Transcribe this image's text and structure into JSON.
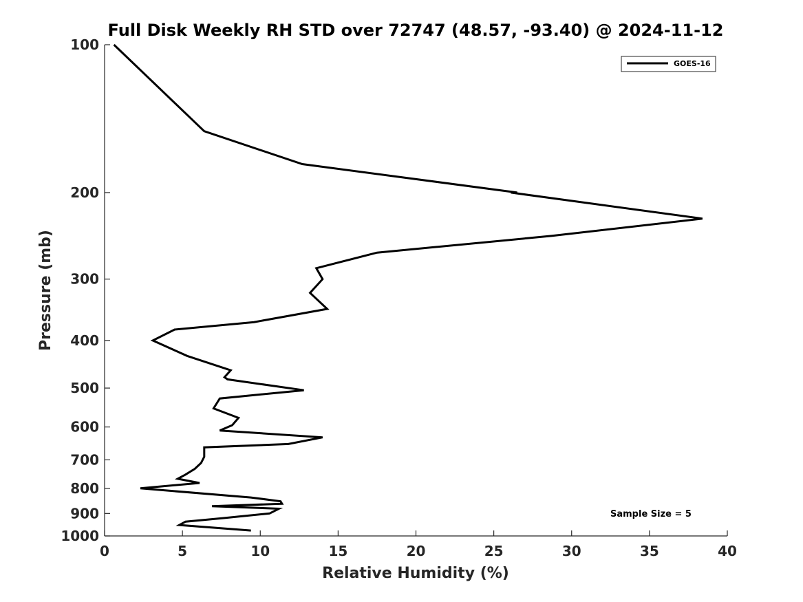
{
  "chart_data": {
    "type": "line",
    "title": "Full Disk Weekly RH STD over 72747 (48.57, -93.40) @ 2024-11-12",
    "xlabel": "Relative Humidity (%)",
    "ylabel": "Pressure (mb)",
    "xlim": [
      0,
      40
    ],
    "ylim": [
      100,
      1000
    ],
    "y_scale": "log",
    "y_reversed": true,
    "x_ticks": [
      "0",
      "5",
      "10",
      "15",
      "20",
      "25",
      "30",
      "35",
      "40"
    ],
    "y_ticks": [
      "100",
      "200",
      "300",
      "400",
      "500",
      "600",
      "700",
      "800",
      "900",
      "1000"
    ],
    "grid": false,
    "legend_position": "top-right",
    "series": [
      {
        "name": "GOES-16",
        "color": "#000000",
        "points": [
          [
            0.6,
            100
          ],
          [
            6.4,
            150
          ],
          [
            12.7,
            175
          ],
          [
            26.5,
            200
          ],
          [
            26.1,
            200
          ],
          [
            38.4,
            226
          ],
          [
            28.7,
            245
          ],
          [
            17.5,
            265
          ],
          [
            13.6,
            285
          ],
          [
            14.0,
            300
          ],
          [
            13.2,
            320
          ],
          [
            14.3,
            345
          ],
          [
            9.6,
            367
          ],
          [
            4.5,
            380
          ],
          [
            3.1,
            400
          ],
          [
            5.3,
            430
          ],
          [
            8.1,
            460
          ],
          [
            7.7,
            475
          ],
          [
            7.9,
            480
          ],
          [
            12.8,
            505
          ],
          [
            7.4,
            525
          ],
          [
            7.0,
            550
          ],
          [
            8.6,
            575
          ],
          [
            8.2,
            595
          ],
          [
            7.4,
            610
          ],
          [
            14.0,
            630
          ],
          [
            11.8,
            650
          ],
          [
            6.4,
            660
          ],
          [
            6.4,
            690
          ],
          [
            6.2,
            710
          ],
          [
            5.8,
            730
          ],
          [
            5.2,
            750
          ],
          [
            4.7,
            765
          ],
          [
            6.1,
            780
          ],
          [
            2.3,
            800
          ],
          [
            9.4,
            835
          ],
          [
            11.3,
            850
          ],
          [
            11.4,
            860
          ],
          [
            6.9,
            870
          ],
          [
            11.2,
            880
          ],
          [
            10.6,
            900
          ],
          [
            7.6,
            920
          ],
          [
            5.2,
            935
          ],
          [
            4.8,
            950
          ],
          [
            9.4,
            975
          ]
        ]
      }
    ],
    "annotations": [
      {
        "text": "Sample Size = 5",
        "position": "bottom-right"
      }
    ]
  }
}
